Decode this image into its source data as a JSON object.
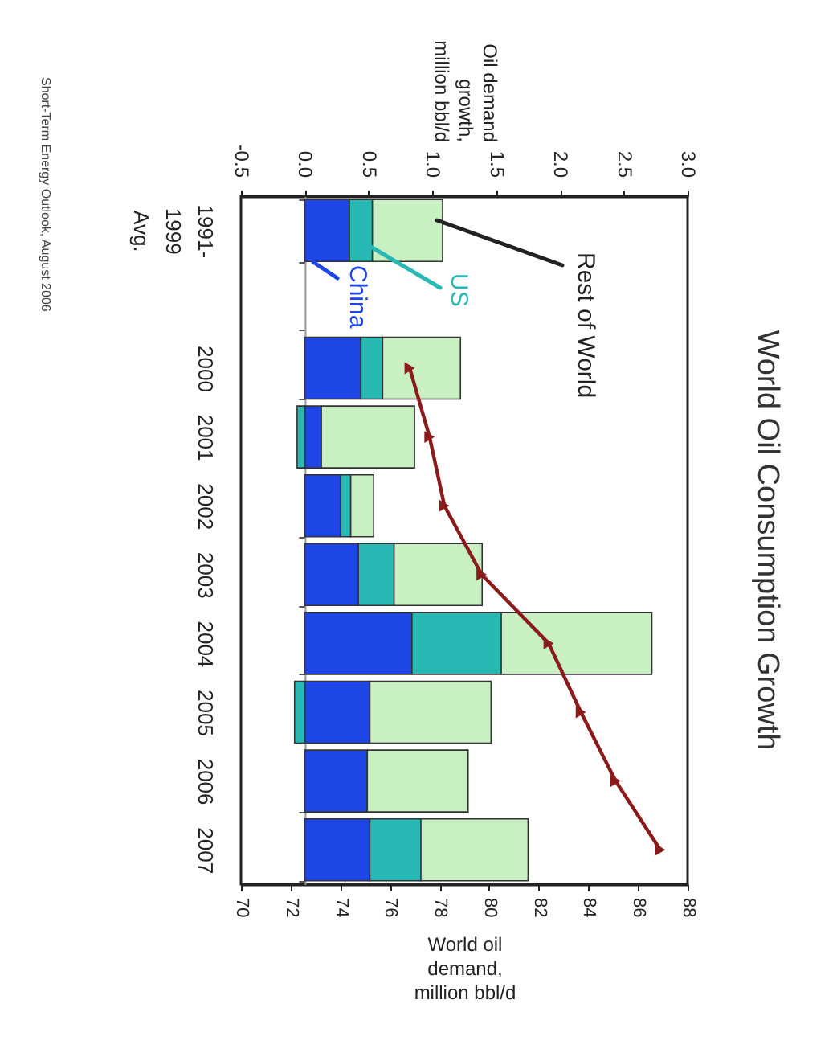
{
  "chart_data": {
    "type": "bar",
    "orientation": "horizontal",
    "stacked": true,
    "title": "World Oil Consumption Growth",
    "categories": [
      "1991-1999 Avg.",
      null,
      "2000",
      "2001",
      "2002",
      "2003",
      "2004",
      "2005",
      "2006",
      "2007"
    ],
    "series": [
      {
        "name": "China",
        "color": "#1e46e6",
        "axis": "x2",
        "values": [
          0.35,
          null,
          0.44,
          0.13,
          0.28,
          0.42,
          0.84,
          0.51,
          0.49,
          0.51
        ]
      },
      {
        "name": "US",
        "color": "#28b9b4",
        "axis": "x2",
        "values": [
          0.18,
          null,
          0.17,
          -0.06,
          0.08,
          0.28,
          0.7,
          -0.08,
          null,
          0.4
        ]
      },
      {
        "name": "Rest of World",
        "color": "#c8f0c3",
        "axis": "x2",
        "values": [
          0.55,
          null,
          0.61,
          0.73,
          0.18,
          0.69,
          1.18,
          0.95,
          0.79,
          0.84
        ]
      },
      {
        "type": "line",
        "color": "#8b1a1a",
        "marker": "triangle",
        "values": [
          null,
          null,
          76.8,
          77.6,
          78.2,
          79.7,
          82.4,
          83.7,
          85.1,
          86.9
        ]
      }
    ],
    "x2label": "Oil demand growth, million bbl/d",
    "x2lim": [
      -0.5,
      3.0
    ],
    "x2ticks": [
      -0.5,
      {
        "value": 0,
        "label": "0.0"
      },
      0.5,
      {
        "value": 1,
        "label": "1.0"
      },
      1.5,
      {
        "value": 2,
        "label": "2.0"
      },
      2.5,
      {
        "value": 3,
        "label": "3.0"
      }
    ],
    "xlabel": "World oil demand, million bbl/d",
    "xlim": [
      70,
      88
    ],
    "xticks": [
      70,
      72,
      74,
      76,
      78,
      80,
      82,
      84,
      86,
      88
    ],
    "annotations": [
      "Short-Term Energy Outlook, August 2006"
    ]
  }
}
